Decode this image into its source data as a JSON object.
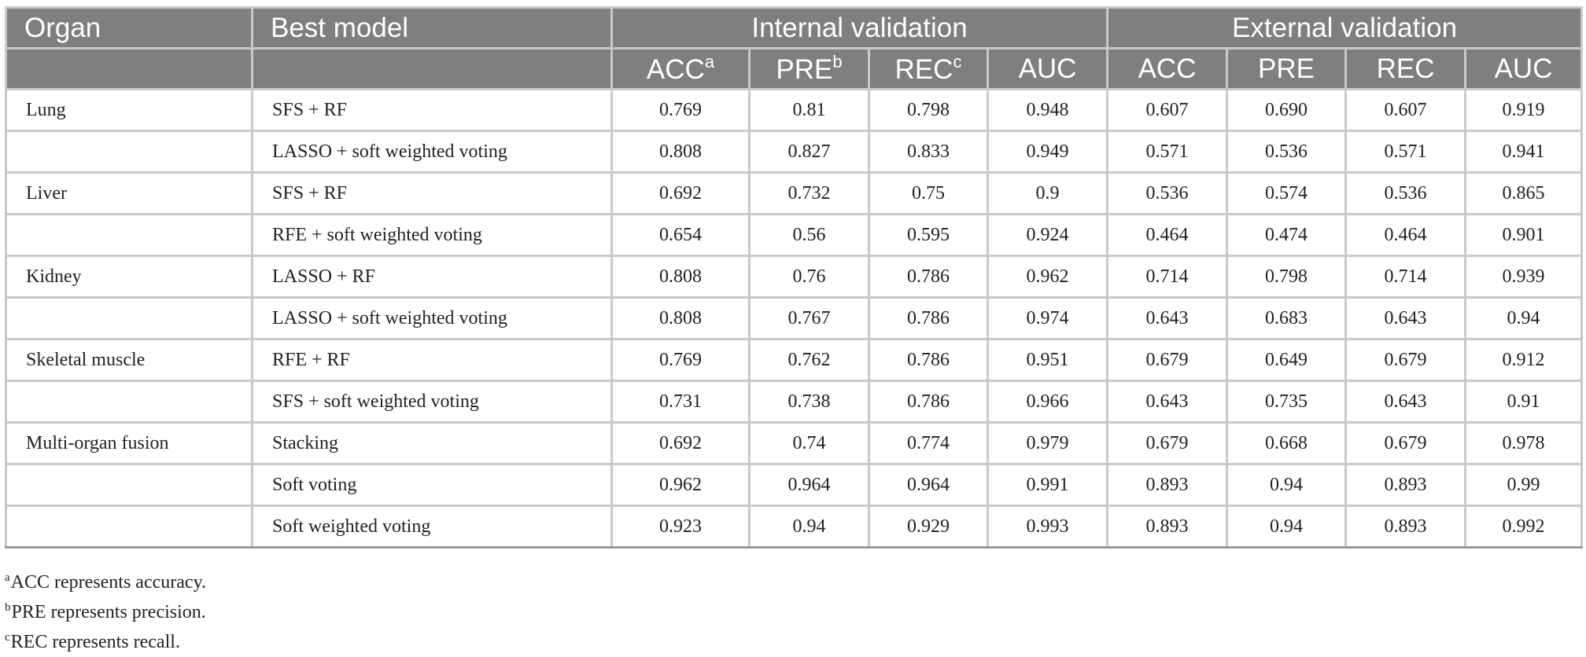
{
  "header": {
    "organ": "Organ",
    "best_model": "Best model",
    "internal_validation": "Internal validation",
    "external_validation": "External validation",
    "metrics": {
      "acc": "ACC",
      "pre": "PRE",
      "rec": "REC",
      "auc": "AUC",
      "acc_mark": "a",
      "pre_mark": "b",
      "rec_mark": "c"
    }
  },
  "rows": [
    {
      "organ": "Lung",
      "model": "SFS + RF",
      "int": [
        "0.769",
        "0.81",
        "0.798",
        "0.948"
      ],
      "ext": [
        "0.607",
        "0.690",
        "0.607",
        "0.919"
      ]
    },
    {
      "organ": "",
      "model": "LASSO + soft weighted voting",
      "int": [
        "0.808",
        "0.827",
        "0.833",
        "0.949"
      ],
      "ext": [
        "0.571",
        "0.536",
        "0.571",
        "0.941"
      ]
    },
    {
      "organ": "Liver",
      "model": "SFS + RF",
      "int": [
        "0.692",
        "0.732",
        "0.75",
        "0.9"
      ],
      "ext": [
        "0.536",
        "0.574",
        "0.536",
        "0.865"
      ]
    },
    {
      "organ": "",
      "model": "RFE + soft weighted voting",
      "int": [
        "0.654",
        "0.56",
        "0.595",
        "0.924"
      ],
      "ext": [
        "0.464",
        "0.474",
        "0.464",
        "0.901"
      ]
    },
    {
      "organ": "Kidney",
      "model": "LASSO + RF",
      "int": [
        "0.808",
        "0.76",
        "0.786",
        "0.962"
      ],
      "ext": [
        "0.714",
        "0.798",
        "0.714",
        "0.939"
      ]
    },
    {
      "organ": "",
      "model": "LASSO + soft weighted voting",
      "int": [
        "0.808",
        "0.767",
        "0.786",
        "0.974"
      ],
      "ext": [
        "0.643",
        "0.683",
        "0.643",
        "0.94"
      ]
    },
    {
      "organ": "Skeletal muscle",
      "model": "RFE + RF",
      "int": [
        "0.769",
        "0.762",
        "0.786",
        "0.951"
      ],
      "ext": [
        "0.679",
        "0.649",
        "0.679",
        "0.912"
      ]
    },
    {
      "organ": "",
      "model": "SFS + soft weighted voting",
      "int": [
        "0.731",
        "0.738",
        "0.786",
        "0.966"
      ],
      "ext": [
        "0.643",
        "0.735",
        "0.643",
        "0.91"
      ]
    },
    {
      "organ": "Multi-organ fusion",
      "model": "Stacking",
      "int": [
        "0.692",
        "0.74",
        "0.774",
        "0.979"
      ],
      "ext": [
        "0.679",
        "0.668",
        "0.679",
        "0.978"
      ]
    },
    {
      "organ": "",
      "model": "Soft voting",
      "int": [
        "0.962",
        "0.964",
        "0.964",
        "0.991"
      ],
      "ext": [
        "0.893",
        "0.94",
        "0.893",
        "0.99"
      ]
    },
    {
      "organ": "",
      "model": "Soft weighted voting",
      "int": [
        "0.923",
        "0.94",
        "0.929",
        "0.993"
      ],
      "ext": [
        "0.893",
        "0.94",
        "0.893",
        "0.992"
      ]
    }
  ],
  "footnotes": [
    {
      "mark": "a",
      "text": "ACC represents accuracy."
    },
    {
      "mark": "b",
      "text": "PRE represents precision."
    },
    {
      "mark": "c",
      "text": "REC represents recall."
    }
  ],
  "colors": {
    "header_bg": "#7f7f7f",
    "header_text": "#ffffff",
    "grid": "#c9c9c9",
    "body_text": "#222222"
  }
}
